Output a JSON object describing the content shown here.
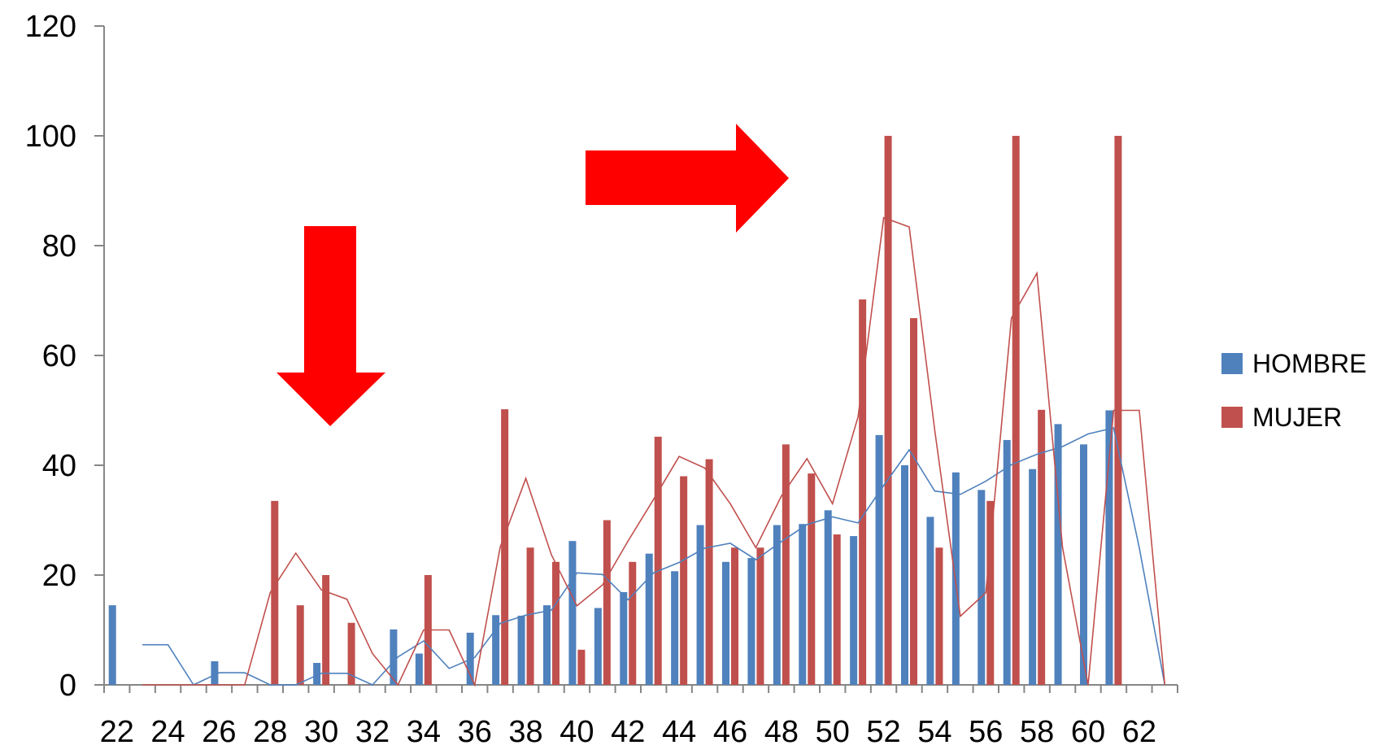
{
  "chart_data": {
    "type": "bar",
    "x": [
      22,
      23,
      24,
      25,
      26,
      27,
      28,
      29,
      30,
      31,
      32,
      33,
      34,
      35,
      36,
      37,
      38,
      39,
      40,
      41,
      42,
      43,
      44,
      45,
      46,
      47,
      48,
      49,
      50,
      51,
      52,
      53,
      54,
      55,
      56,
      57,
      58,
      59,
      60,
      61,
      62,
      63
    ],
    "x_tick_labels": [
      "22",
      "24",
      "26",
      "28",
      "30",
      "32",
      "34",
      "36",
      "38",
      "40",
      "42",
      "44",
      "46",
      "48",
      "50",
      "52",
      "54",
      "56",
      "58",
      "60",
      "62"
    ],
    "ylim": [
      0,
      120
    ],
    "y_ticks": [
      0,
      20,
      40,
      60,
      80,
      100,
      120
    ],
    "y_tick_labels": [
      "0",
      "20",
      "40",
      "60",
      "80",
      "100",
      "120"
    ],
    "legend_position": "right",
    "series": [
      {
        "name": "HOMBRE",
        "color": "#4F81BD",
        "bars": [
          14.5,
          0,
          0,
          0,
          4.3,
          0,
          0,
          0,
          4,
          0,
          0,
          10.1,
          5.7,
          0,
          9.5,
          12.7,
          12.6,
          14.5,
          26.2,
          14,
          16.9,
          23.9,
          20.7,
          29.1,
          22.4,
          23.1,
          29.1,
          29.3,
          31.8,
          27.1,
          45.5,
          40,
          30.6,
          38.7,
          35.5,
          44.6,
          39.3,
          47.5,
          43.8,
          50,
          0,
          0
        ],
        "trend": [
          null,
          7.3,
          7.3,
          0,
          2.2,
          2.2,
          0,
          0,
          2.1,
          2.1,
          0,
          5.1,
          8,
          3,
          5,
          11.2,
          12.7,
          13.6,
          20.4,
          20.1,
          15.5,
          20.4,
          22.3,
          24.9,
          25.8,
          22.8,
          26.1,
          29.2,
          30.6,
          29.5,
          36.3,
          42.8,
          35.3,
          34.7,
          37.1,
          40.1,
          42,
          43.4,
          45.7,
          46.8,
          25,
          0
        ]
      },
      {
        "name": "MUJER",
        "color": "#C0504D",
        "bars": [
          0,
          0,
          0,
          0,
          0,
          0,
          33.5,
          14.5,
          20,
          11.3,
          0,
          0,
          20,
          0,
          0,
          50.2,
          25,
          22.4,
          6.4,
          30,
          22.4,
          45.2,
          38,
          41.1,
          25,
          25,
          43.8,
          38.5,
          27.4,
          70.2,
          100,
          66.8,
          25,
          0,
          33.5,
          100,
          50.1,
          0,
          0,
          100,
          0,
          0
        ],
        "trend": [
          null,
          0,
          0,
          0,
          0,
          0,
          16.8,
          24,
          17.3,
          15.6,
          5.7,
          0,
          10,
          10,
          0,
          25.1,
          37.6,
          23.7,
          14.4,
          18.2,
          26.2,
          33.8,
          41.6,
          39.5,
          33,
          25,
          34.4,
          41.2,
          33,
          48.8,
          85.1,
          83.4,
          46.4,
          12.5,
          16.8,
          66.8,
          75,
          25,
          0,
          50,
          50,
          0
        ]
      }
    ],
    "annotations": [
      {
        "type": "arrow",
        "direction": "down",
        "color": "#FF0000"
      },
      {
        "type": "arrow",
        "direction": "right",
        "color": "#FF0000"
      }
    ]
  }
}
